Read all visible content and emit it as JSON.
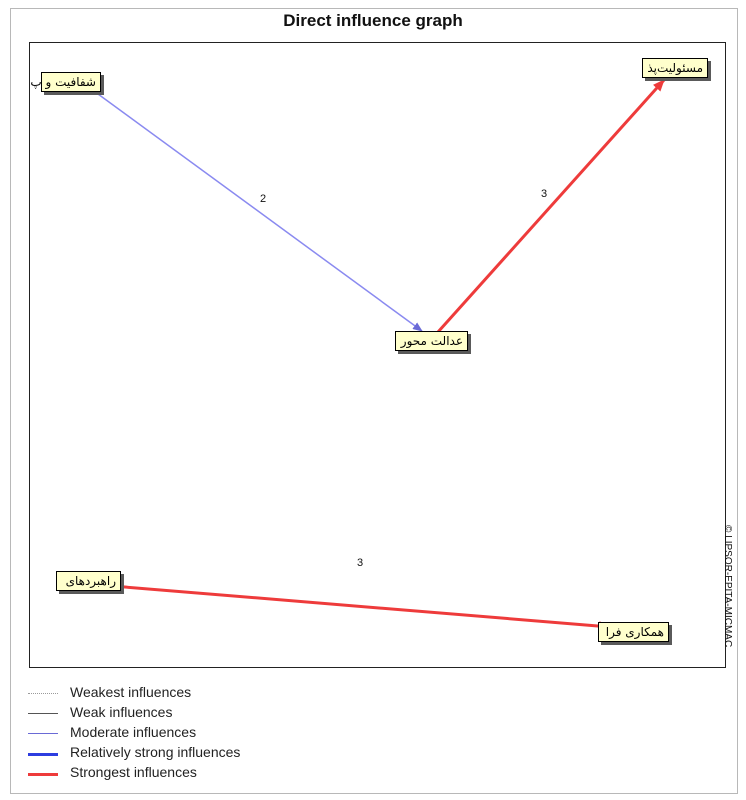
{
  "title": "Direct influence graph",
  "copyright": "© LIPSOR-EPITA-MICMAC",
  "nodes": {
    "n1": "شفافیت و پ",
    "n2": "مسئولیت‌پذ",
    "n3": "عدالت محور",
    "n4": "راهبردهای",
    "n5": "همکاری فرا"
  },
  "edges": [
    {
      "from": "n1",
      "to": "n3",
      "weight": "2",
      "strength": "moderate",
      "color": "#8a8af0"
    },
    {
      "from": "n3",
      "to": "n2",
      "weight": "3",
      "strength": "strongest",
      "color": "#ee3b3b"
    },
    {
      "from": "n4",
      "to": "n5",
      "weight": "3",
      "strength": "strongest",
      "color": "#ee3b3b"
    }
  ],
  "legend": [
    {
      "label": "Weakest influences",
      "color": "#9a9a9a",
      "style": "dotted"
    },
    {
      "label": "Weak influences",
      "color": "#555555",
      "style": "solid"
    },
    {
      "label": "Moderate influences",
      "color": "#6a6ad6",
      "style": "solid"
    },
    {
      "label": "Relatively strong influences",
      "color": "#2d3de0",
      "style": "bold"
    },
    {
      "label": "Strongest influences",
      "color": "#ee3b3b",
      "style": "bold"
    }
  ]
}
